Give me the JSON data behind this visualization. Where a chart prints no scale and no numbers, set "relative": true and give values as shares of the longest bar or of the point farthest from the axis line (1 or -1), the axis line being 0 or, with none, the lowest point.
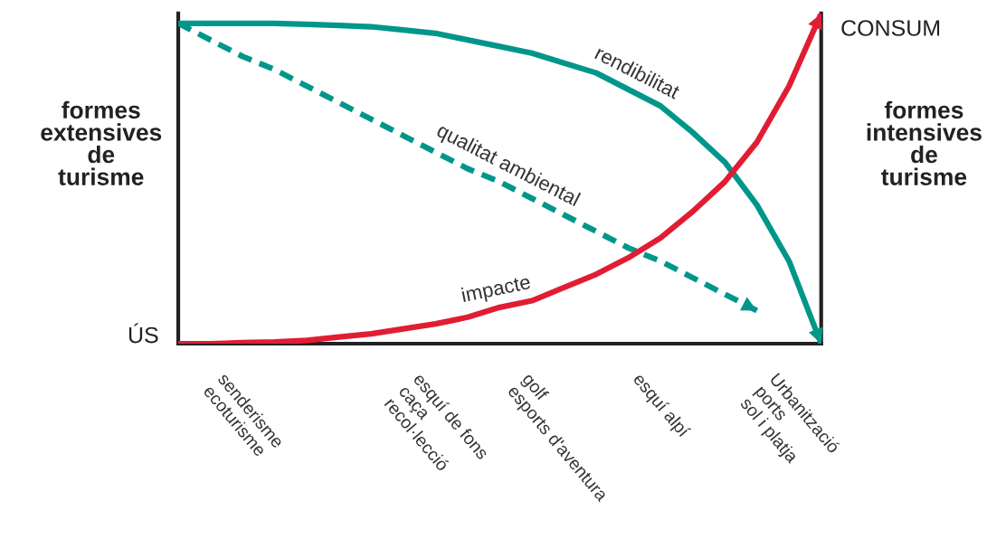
{
  "chart_data": {
    "type": "line",
    "relative": true,
    "grid": false,
    "legend": false,
    "ylabel": "formes\nextensives\nde\nturisme",
    "y2label": "formes\nintensives\nde\nturisme",
    "annotations": [
      "ÚS",
      "CONSUM"
    ],
    "categories": [
      null,
      null,
      "senderisme\necoturisme",
      null,
      null,
      null,
      null,
      null,
      "esquí de fons\ncaça\nrecol·lecció",
      null,
      null,
      null,
      "golf\nesports d'aventura",
      null,
      null,
      "esquí alpí",
      null,
      null,
      null,
      "Urbanització\nports\nsol i platja",
      null
    ],
    "series": [
      {
        "name": "rendibilitat",
        "color": "#00968a",
        "line_style": "solid",
        "values": [
          0.97,
          0.97,
          0.97,
          0.97,
          0.967,
          0.964,
          0.96,
          0.95,
          0.94,
          0.92,
          0.9,
          0.88,
          0.85,
          0.82,
          0.77,
          0.72,
          0.64,
          0.55,
          0.42,
          0.25,
          0
        ]
      },
      {
        "name": "qualitat ambiental",
        "color": "#00968a",
        "line_style": "dashed",
        "values": [
          0.97,
          0.92,
          0.87,
          0.83,
          0.78,
          0.73,
          0.68,
          0.63,
          0.58,
          0.53,
          0.49,
          0.44,
          0.39,
          0.34,
          0.29,
          0.25,
          0.2,
          0.15,
          0.1,
          null,
          null
        ]
      },
      {
        "name": "impacte",
        "color": "#e11d33",
        "line_style": "solid",
        "values": [
          0,
          0,
          0.003,
          0.005,
          0.01,
          0.02,
          0.03,
          0.045,
          0.06,
          0.08,
          0.11,
          0.13,
          0.17,
          0.21,
          0.26,
          0.32,
          0.4,
          0.49,
          0.61,
          0.78,
          1
        ]
      }
    ]
  }
}
